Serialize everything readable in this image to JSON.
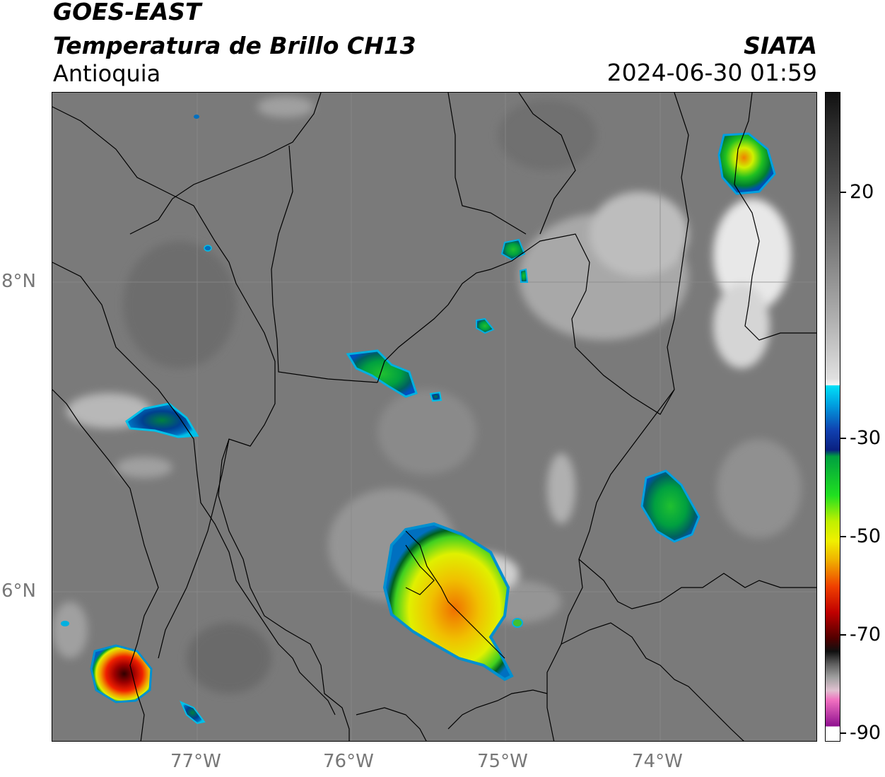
{
  "header": {
    "satellite": "GOES-EAST",
    "product": "Temperatura de Brillo CH13",
    "region": "Antioquia",
    "organization": "SIATA",
    "timestamp": "2024-06-30 01:59"
  },
  "map": {
    "longitude_ticks": [
      "77°W",
      "76°W",
      "75°W",
      "74°W"
    ],
    "latitude_ticks": [
      "8°N",
      "6°N"
    ],
    "colors": {
      "background_gray": "#777777",
      "border_lines": "#000000",
      "gridline": "#8a8a8a"
    }
  },
  "colorbar": {
    "tick_labels": [
      "20",
      "-30",
      "-50",
      "-70",
      "-90"
    ],
    "colors": {
      "warm_top": "#1a1a1a",
      "mid_gray": "#a0a0a0",
      "white": "#f4f4f4",
      "cyan": "#00d0f0",
      "dark_blue": "#102090",
      "green": "#00c020",
      "yellow": "#f0f000",
      "orange": "#f09000",
      "red": "#e00000",
      "dark_red": "#300000",
      "pink": "#f070c0",
      "purple": "#901090"
    }
  }
}
